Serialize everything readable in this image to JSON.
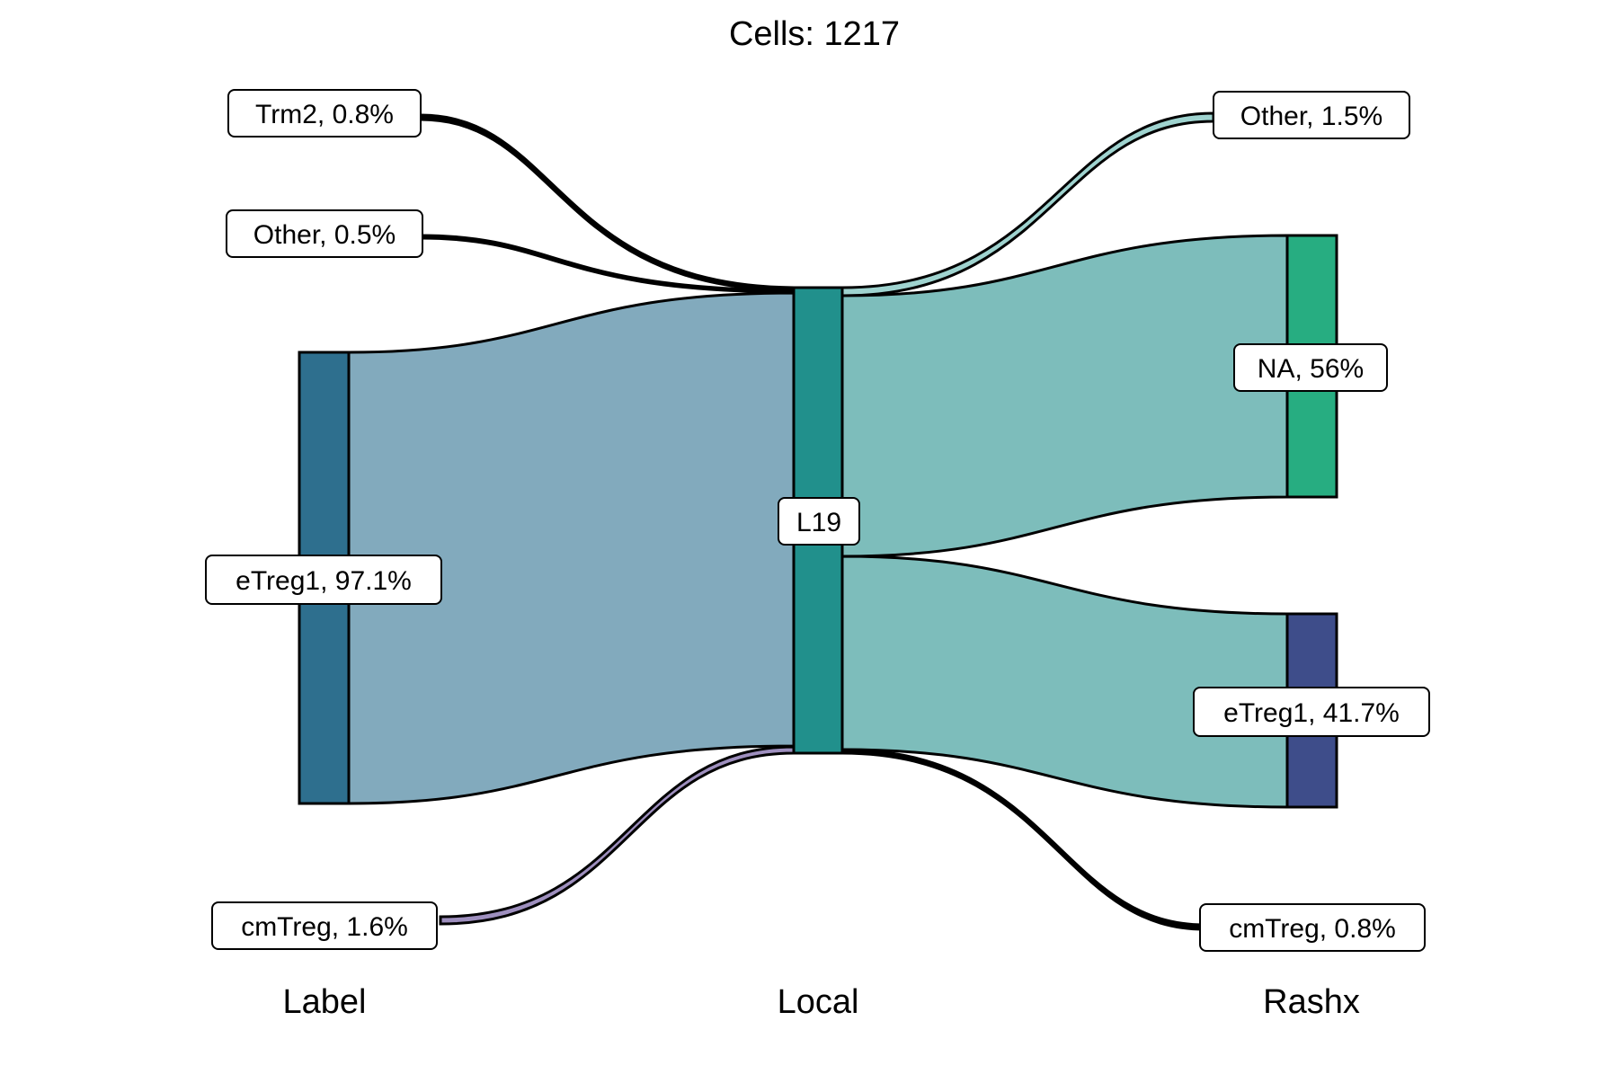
{
  "title": "Cells:  1217",
  "axes": [
    "Label",
    "Local",
    "Rashx"
  ],
  "nodes": {
    "label_trm2": {
      "text": "Trm2, 0.8%",
      "color": "#404688"
    },
    "label_other": {
      "text": "Other, 0.5%",
      "color": "#482173"
    },
    "label_etreg1": {
      "text": "eTreg1, 97.1%",
      "color": "#2e6f8e"
    },
    "label_cmtreg": {
      "text": "cmTreg, 1.6%",
      "color": "#8b7aa8"
    },
    "local_l19": {
      "text": "L19",
      "color": "#21908c"
    },
    "rashx_other": {
      "text": "Other, 1.5%",
      "color": "#7fbfbd"
    },
    "rashx_na": {
      "text": "NA, 56%",
      "color": "#27ad81"
    },
    "rashx_etreg1": {
      "text": "eTreg1, 41.7%",
      "color": "#3e4d8a"
    },
    "rashx_cmtreg": {
      "text": "cmTreg, 0.8%",
      "color": "#1f2a44"
    }
  },
  "flow_colors": {
    "left_main": "#82aabd",
    "left_cmtreg": "#9e8fbe",
    "right_main": "#7dbdbb",
    "right_other": "#9fd3cf",
    "thin": "#000000"
  }
}
